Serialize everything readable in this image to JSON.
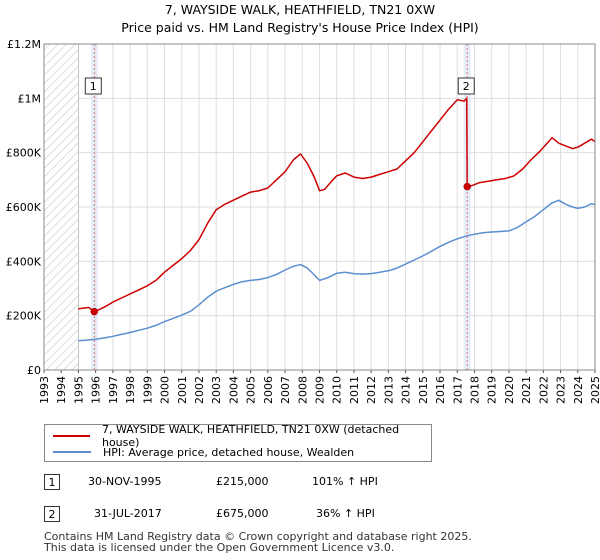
{
  "header": {
    "title": "7, WAYSIDE WALK, HEATHFIELD, TN21 0XW",
    "subtitle": "Price paid vs. HM Land Registry's House Price Index (HPI)"
  },
  "chart_data": {
    "type": "line",
    "title": "7, WAYSIDE WALK, HEATHFIELD, TN21 0XW",
    "subtitle": "Price paid vs. HM Land Registry's House Price Index (HPI)",
    "xlabel": "",
    "ylabel": "",
    "xlim": [
      1993,
      2025
    ],
    "ylim": [
      0,
      1200000
    ],
    "x_ticks": [
      "1993",
      "1994",
      "1995",
      "1996",
      "1997",
      "1998",
      "1999",
      "2000",
      "2001",
      "2002",
      "2003",
      "2004",
      "2005",
      "2006",
      "2007",
      "2008",
      "2009",
      "2010",
      "2011",
      "2012",
      "2013",
      "2014",
      "2015",
      "2016",
      "2017",
      "2018",
      "2019",
      "2020",
      "2021",
      "2022",
      "2023",
      "2024",
      "2025"
    ],
    "y_ticks": [
      {
        "value": 0,
        "label": "£0"
      },
      {
        "value": 200000,
        "label": "£200K"
      },
      {
        "value": 400000,
        "label": "£400K"
      },
      {
        "value": 600000,
        "label": "£600K"
      },
      {
        "value": 800000,
        "label": "£800K"
      },
      {
        "value": 1000000,
        "label": "£1M"
      },
      {
        "value": 1200000,
        "label": "£1.2M"
      }
    ],
    "grid": true,
    "hatched_range": [
      1993,
      1995.0
    ],
    "series": [
      {
        "name": "7, WAYSIDE WALK, HEATHFIELD, TN21 0XW (detached house)",
        "color": "#cc0000",
        "points": [
          [
            1995.0,
            225000
          ],
          [
            1995.3,
            228000
          ],
          [
            1995.6,
            230000
          ],
          [
            1995.92,
            215000
          ],
          [
            1996.2,
            222000
          ],
          [
            1996.6,
            235000
          ],
          [
            1997.0,
            250000
          ],
          [
            1997.5,
            265000
          ],
          [
            1998.0,
            280000
          ],
          [
            1998.5,
            295000
          ],
          [
            1999.0,
            310000
          ],
          [
            1999.5,
            330000
          ],
          [
            2000.0,
            360000
          ],
          [
            2000.5,
            385000
          ],
          [
            2001.0,
            410000
          ],
          [
            2001.5,
            440000
          ],
          [
            2002.0,
            480000
          ],
          [
            2002.5,
            540000
          ],
          [
            2003.0,
            590000
          ],
          [
            2003.5,
            610000
          ],
          [
            2004.0,
            625000
          ],
          [
            2004.5,
            640000
          ],
          [
            2005.0,
            655000
          ],
          [
            2005.5,
            660000
          ],
          [
            2006.0,
            670000
          ],
          [
            2006.5,
            700000
          ],
          [
            2007.0,
            730000
          ],
          [
            2007.5,
            775000
          ],
          [
            2007.9,
            795000
          ],
          [
            2008.3,
            760000
          ],
          [
            2008.7,
            710000
          ],
          [
            2009.0,
            660000
          ],
          [
            2009.3,
            665000
          ],
          [
            2009.7,
            695000
          ],
          [
            2010.0,
            715000
          ],
          [
            2010.5,
            725000
          ],
          [
            2011.0,
            710000
          ],
          [
            2011.5,
            705000
          ],
          [
            2012.0,
            710000
          ],
          [
            2012.5,
            720000
          ],
          [
            2013.0,
            730000
          ],
          [
            2013.5,
            740000
          ],
          [
            2014.0,
            770000
          ],
          [
            2014.5,
            800000
          ],
          [
            2015.0,
            840000
          ],
          [
            2015.5,
            880000
          ],
          [
            2016.0,
            920000
          ],
          [
            2016.5,
            960000
          ],
          [
            2017.0,
            995000
          ],
          [
            2017.4,
            990000
          ],
          [
            2017.55,
            1000000
          ],
          [
            2017.58,
            675000
          ],
          [
            2017.9,
            680000
          ],
          [
            2018.3,
            690000
          ],
          [
            2018.8,
            695000
          ],
          [
            2019.3,
            700000
          ],
          [
            2019.8,
            705000
          ],
          [
            2020.3,
            715000
          ],
          [
            2020.8,
            740000
          ],
          [
            2021.3,
            775000
          ],
          [
            2021.8,
            805000
          ],
          [
            2022.3,
            840000
          ],
          [
            2022.5,
            855000
          ],
          [
            2022.9,
            835000
          ],
          [
            2023.3,
            825000
          ],
          [
            2023.7,
            815000
          ],
          [
            2024.0,
            820000
          ],
          [
            2024.4,
            835000
          ],
          [
            2024.8,
            850000
          ],
          [
            2025.0,
            840000
          ]
        ]
      },
      {
        "name": "HPI: Average price, detached house, Wealden",
        "color": "#5b8fd0",
        "points": [
          [
            1995.0,
            108000
          ],
          [
            1995.5,
            110000
          ],
          [
            1996.0,
            113000
          ],
          [
            1996.5,
            118000
          ],
          [
            1997.0,
            124000
          ],
          [
            1997.5,
            131000
          ],
          [
            1998.0,
            138000
          ],
          [
            1998.5,
            146000
          ],
          [
            1999.0,
            154000
          ],
          [
            1999.5,
            164000
          ],
          [
            2000.0,
            178000
          ],
          [
            2000.5,
            190000
          ],
          [
            2001.0,
            202000
          ],
          [
            2001.5,
            216000
          ],
          [
            2002.0,
            240000
          ],
          [
            2002.5,
            268000
          ],
          [
            2003.0,
            290000
          ],
          [
            2003.5,
            303000
          ],
          [
            2004.0,
            315000
          ],
          [
            2004.5,
            325000
          ],
          [
            2005.0,
            330000
          ],
          [
            2005.5,
            333000
          ],
          [
            2006.0,
            340000
          ],
          [
            2006.5,
            352000
          ],
          [
            2007.0,
            368000
          ],
          [
            2007.5,
            382000
          ],
          [
            2007.9,
            388000
          ],
          [
            2008.3,
            375000
          ],
          [
            2008.7,
            350000
          ],
          [
            2009.0,
            330000
          ],
          [
            2009.5,
            340000
          ],
          [
            2010.0,
            356000
          ],
          [
            2010.5,
            360000
          ],
          [
            2011.0,
            355000
          ],
          [
            2011.5,
            353000
          ],
          [
            2012.0,
            355000
          ],
          [
            2012.5,
            360000
          ],
          [
            2013.0,
            365000
          ],
          [
            2013.5,
            375000
          ],
          [
            2014.0,
            390000
          ],
          [
            2014.5,
            405000
          ],
          [
            2015.0,
            420000
          ],
          [
            2015.5,
            437000
          ],
          [
            2016.0,
            455000
          ],
          [
            2016.5,
            470000
          ],
          [
            2017.0,
            483000
          ],
          [
            2017.58,
            494000
          ],
          [
            2018.0,
            500000
          ],
          [
            2018.5,
            505000
          ],
          [
            2019.0,
            508000
          ],
          [
            2019.5,
            510000
          ],
          [
            2020.0,
            512000
          ],
          [
            2020.5,
            525000
          ],
          [
            2021.0,
            545000
          ],
          [
            2021.5,
            565000
          ],
          [
            2022.0,
            590000
          ],
          [
            2022.5,
            615000
          ],
          [
            2022.9,
            625000
          ],
          [
            2023.3,
            610000
          ],
          [
            2023.7,
            600000
          ],
          [
            2024.0,
            595000
          ],
          [
            2024.4,
            600000
          ],
          [
            2024.8,
            612000
          ],
          [
            2025.0,
            608000
          ]
        ]
      }
    ],
    "sales": [
      {
        "id": "1",
        "x": 1995.92,
        "y": 215000
      },
      {
        "id": "2",
        "x": 2017.58,
        "y": 675000
      }
    ]
  },
  "legend": {
    "items": [
      {
        "label": "7, WAYSIDE WALK, HEATHFIELD, TN21 0XW (detached house)",
        "color": "#cc0000"
      },
      {
        "label": "HPI: Average price, detached house, Wealden",
        "color": "#5b8fd0"
      }
    ]
  },
  "sales_table": [
    {
      "id": "1",
      "date": "30-NOV-1995",
      "price": "£215,000",
      "hpi": "101% ↑ HPI"
    },
    {
      "id": "2",
      "date": "31-JUL-2017",
      "price": "£675,000",
      "hpi": "36% ↑ HPI"
    }
  ],
  "footer": {
    "line1": "Contains HM Land Registry data © Crown copyright and database right 2025.",
    "line2": "This data is licensed under the Open Government Licence v3.0."
  }
}
